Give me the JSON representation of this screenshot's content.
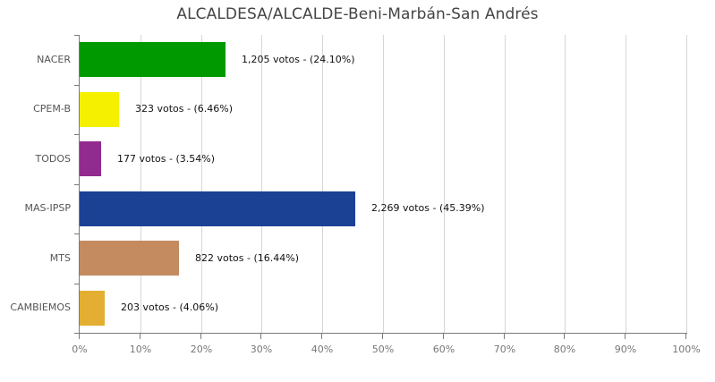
{
  "chart_data": {
    "type": "bar",
    "orientation": "horizontal",
    "title": "ALCALDESA/ALCALDE-Beni-Marbán-San Andrés",
    "xlabel": "",
    "ylabel": "",
    "xlim": [
      0,
      100
    ],
    "grid": true,
    "legend": "none",
    "categories": [
      "NACER",
      "CPEM-B",
      "TODOS",
      "MAS-IPSP",
      "MTS",
      "CAMBIEMOS"
    ],
    "votes": [
      1205,
      323,
      177,
      2269,
      822,
      203
    ],
    "values": [
      24.1,
      6.46,
      3.54,
      45.39,
      16.44,
      4.06
    ],
    "colors": [
      "#009900",
      "#f5f000",
      "#922b8f",
      "#1a4194",
      "#c48b60",
      "#e3ae31"
    ],
    "data_labels": [
      "1,205 votos - (24.10%)",
      "323 votos - (6.46%)",
      "177 votos - (3.54%)",
      "2,269 votos - (45.39%)",
      "822 votos - (16.44%)",
      "203 votos - (4.06%)"
    ],
    "x_ticks": [
      "0%",
      "10%",
      "20%",
      "30%",
      "40%",
      "50%",
      "60%",
      "70%",
      "80%",
      "90%",
      "100%"
    ]
  }
}
